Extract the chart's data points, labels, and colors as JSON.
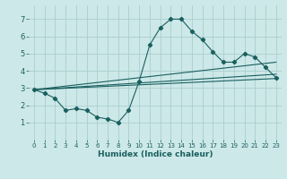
{
  "xlabel": "Humidex (Indice chaleur)",
  "xlim": [
    -0.5,
    23.5
  ],
  "ylim": [
    0,
    7.8
  ],
  "xticks": [
    0,
    1,
    2,
    3,
    4,
    5,
    6,
    7,
    8,
    9,
    10,
    11,
    12,
    13,
    14,
    15,
    16,
    17,
    18,
    19,
    20,
    21,
    22,
    23
  ],
  "yticks": [
    1,
    2,
    3,
    4,
    5,
    6,
    7
  ],
  "background_color": "#cde8e8",
  "grid_color": "#aacece",
  "line_color": "#1a5f5f",
  "line1_x": [
    0,
    1,
    2,
    3,
    4,
    5,
    6,
    7,
    8,
    9,
    10,
    11,
    12,
    13,
    14,
    15,
    16,
    17,
    18,
    19,
    20,
    21,
    22,
    23
  ],
  "line1_y": [
    2.9,
    2.7,
    2.4,
    1.7,
    1.8,
    1.7,
    1.3,
    1.2,
    1.0,
    1.7,
    3.4,
    5.5,
    6.5,
    7.0,
    7.0,
    6.3,
    5.8,
    5.1,
    4.5,
    4.5,
    5.0,
    4.8,
    4.2,
    3.6
  ],
  "trend1_x": [
    0,
    23
  ],
  "trend1_y": [
    2.9,
    4.5
  ],
  "trend2_x": [
    0,
    23
  ],
  "trend2_y": [
    2.9,
    3.8
  ],
  "trend3_x": [
    0,
    23
  ],
  "trend3_y": [
    2.9,
    3.55
  ]
}
